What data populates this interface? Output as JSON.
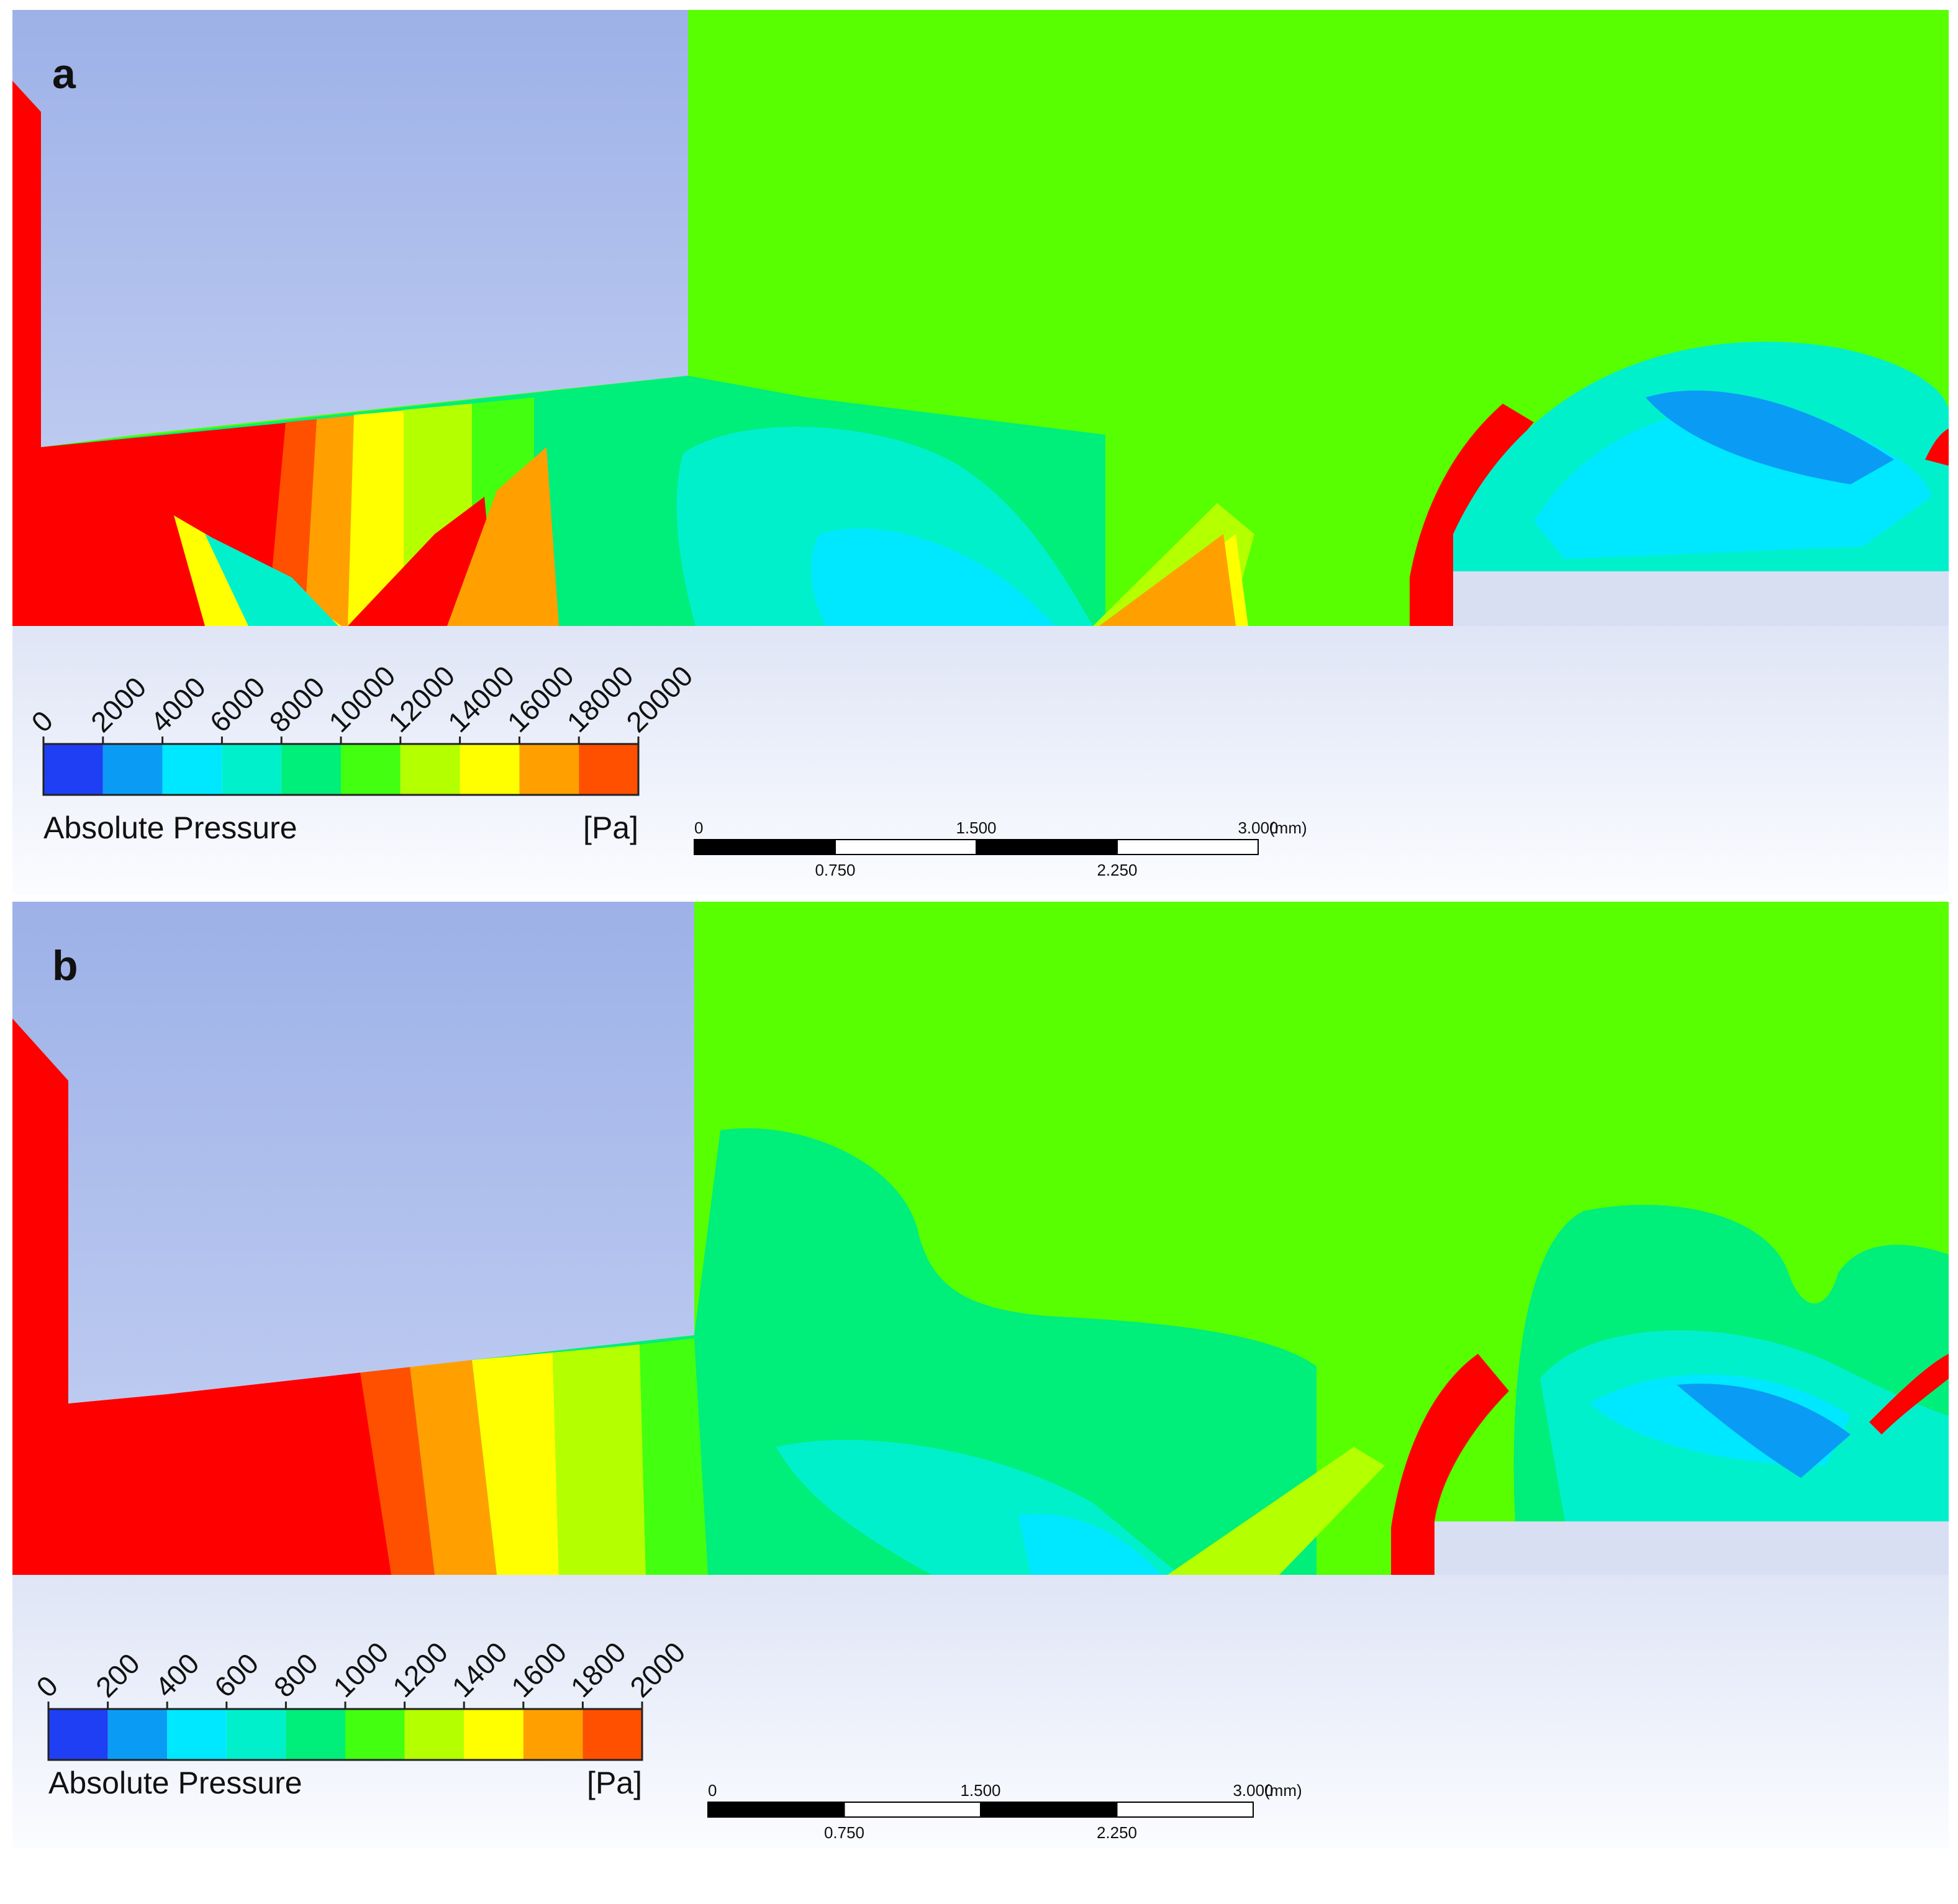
{
  "colors": {
    "background_freestream": "#57ff00",
    "solid": "#b3c3ee",
    "bands": [
      "#1f3ff5",
      "#0a9cf5",
      "#00e8ff",
      "#00f0cc",
      "#00ee7a",
      "#43ff10",
      "#b4ff00",
      "#ffff00",
      "#ffa000",
      "#ff5000",
      "#ff0000"
    ]
  },
  "panels": [
    {
      "letter": "a",
      "legend": {
        "title": "Absolute Pressure",
        "unit": "[Pa]",
        "ticks": [
          "0",
          "2000",
          "4000",
          "6000",
          "8000",
          "10000",
          "12000",
          "14000",
          "16000",
          "18000",
          "20000"
        ]
      },
      "scale_bar": {
        "top_labels": [
          "0",
          "1.500",
          "3.000"
        ],
        "unit": "(mm)",
        "bottom_labels": [
          "0.750",
          "2.250"
        ]
      }
    },
    {
      "letter": "b",
      "legend": {
        "title": "Absolute Pressure",
        "unit": "[Pa]",
        "ticks": [
          "0",
          "200",
          "400",
          "600",
          "800",
          "1000",
          "1200",
          "1400",
          "1600",
          "1800",
          "2000"
        ]
      },
      "scale_bar": {
        "top_labels": [
          "0",
          "1.500",
          "3.000"
        ],
        "unit": "(mm)",
        "bottom_labels": [
          "0.750",
          "2.250"
        ]
      }
    }
  ]
}
